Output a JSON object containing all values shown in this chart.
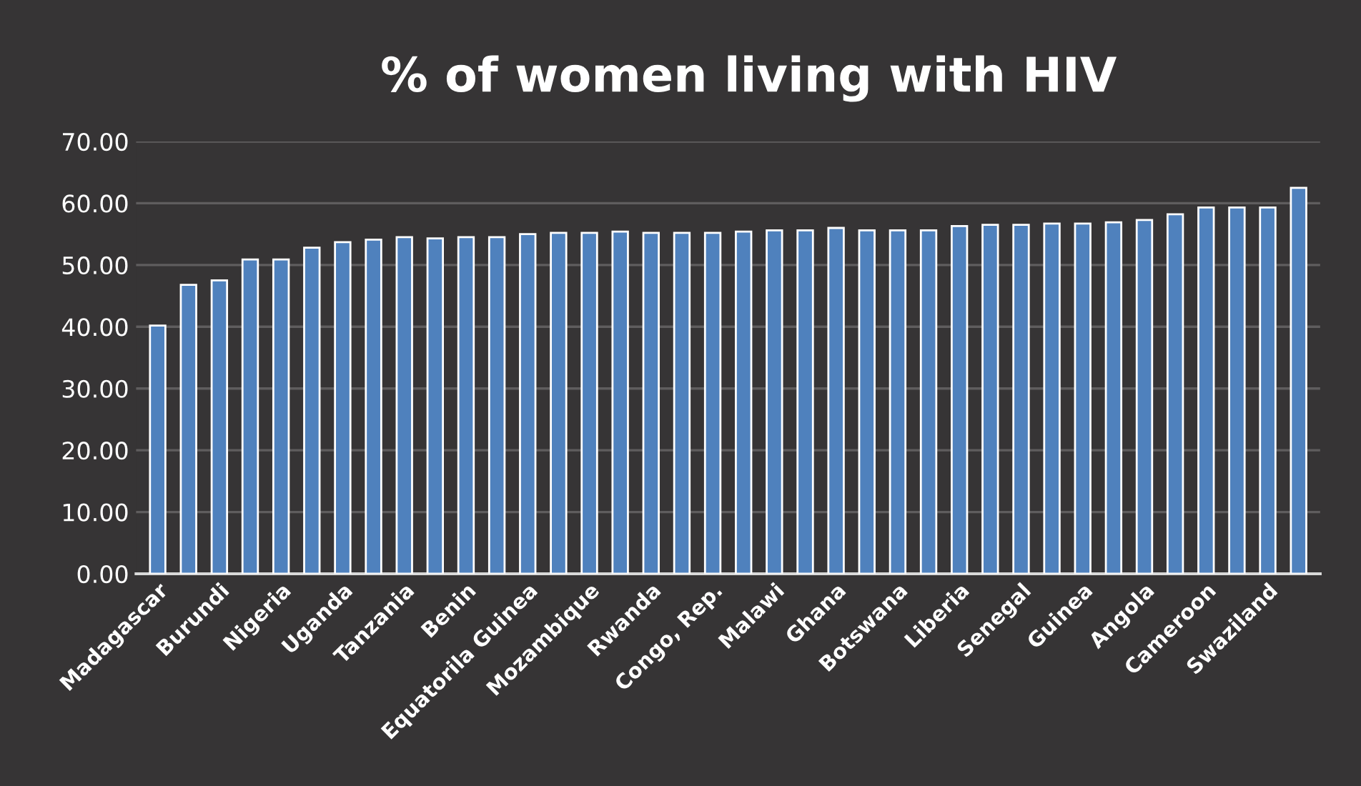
{
  "chart_data": {
    "type": "bar",
    "title": "% of women living with HIV",
    "categories": [
      "Madagascar",
      null,
      "Burundi",
      null,
      "Nigeria",
      null,
      "Uganda",
      null,
      "Tanzania",
      null,
      "Benin",
      null,
      "Equatorila Guinea",
      null,
      "Mozambique",
      null,
      "Rwanda",
      null,
      "Congo, Rep.",
      null,
      "Malawi",
      null,
      "Ghana",
      null,
      "Botswana",
      null,
      "Liberia",
      null,
      "Senegal",
      null,
      "Guinea",
      null,
      "Angola",
      null,
      "Cameroon",
      null,
      "Swaziland",
      null
    ],
    "values": [
      40.2,
      46.8,
      47.5,
      50.9,
      50.9,
      52.8,
      53.7,
      54.1,
      54.5,
      54.3,
      54.5,
      54.5,
      55.0,
      55.2,
      55.2,
      55.4,
      55.2,
      55.2,
      55.2,
      55.4,
      55.6,
      55.6,
      56.0,
      55.6,
      55.6,
      55.6,
      56.3,
      56.5,
      56.5,
      56.7,
      56.7,
      56.9,
      57.3,
      58.2,
      59.3,
      59.3,
      59.3,
      62.5
    ],
    "color": "#4f81bd",
    "ylim": [
      0,
      70
    ],
    "yticks": [
      {
        "value": 0,
        "label": "0.00"
      },
      {
        "value": 10,
        "label": "10.00"
      },
      {
        "value": 20,
        "label": "20.00"
      },
      {
        "value": 30,
        "label": "30.00"
      },
      {
        "value": 40,
        "label": "40.00"
      },
      {
        "value": 50,
        "label": "50.00"
      },
      {
        "value": 60,
        "label": "60.00"
      },
      {
        "value": 70,
        "label": "70.00"
      }
    ],
    "grid": "y"
  }
}
